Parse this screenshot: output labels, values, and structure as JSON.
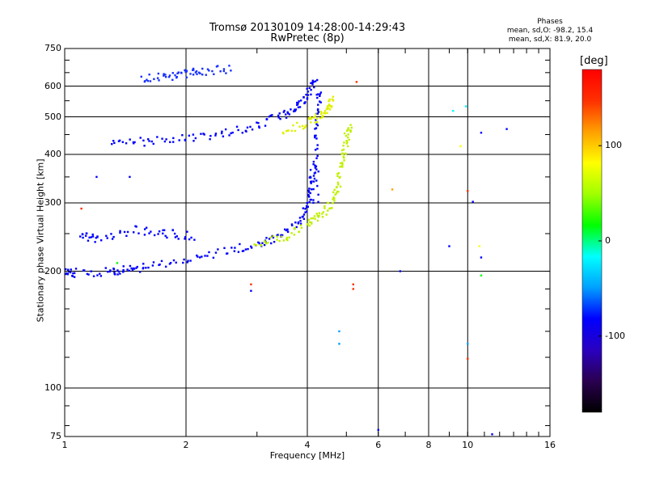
{
  "header": {
    "title": "Tromsø 20130109 14:28:00-14:29:43",
    "subtitle": "RwPretec (8p)",
    "stats_title": "Phases",
    "stats_o": "mean, sd,O: -98.2, 15.4",
    "stats_x": "mean, sd,X: 81.9, 20.0"
  },
  "colorbar": {
    "label": "[deg]",
    "ticks": [
      "100",
      "0",
      "-100"
    ],
    "range": [
      -180,
      180
    ],
    "colors": [
      "#000000",
      "#2a0050",
      "#2a00c0",
      "#0000ff",
      "#00a0ff",
      "#00ffff",
      "#00ff00",
      "#a0ff00",
      "#ffff00",
      "#ffa000",
      "#ff3000",
      "#ff0000"
    ]
  },
  "chart_data": {
    "type": "scatter",
    "title": "Tromsø 20130109 14:28:00-14:29:43",
    "subtitle": "RwPretec (8p)",
    "xlabel": "Frequency [MHz]",
    "ylabel": "Stationary phase Virtual Height [km]",
    "xscale": "log",
    "yscale": "log",
    "xlim": [
      1,
      16
    ],
    "ylim": [
      75,
      750
    ],
    "xticks": [
      "1",
      "2",
      "4",
      "6",
      "8",
      "10",
      "16"
    ],
    "yticks": [
      "75",
      "100",
      "200",
      "300",
      "400",
      "500",
      "600",
      "750"
    ],
    "grid": true,
    "series": [
      {
        "color": "#0000ff",
        "points": [
          [
            1.0,
            200
          ],
          [
            1.05,
            198
          ],
          [
            1.3,
            199
          ],
          [
            1.4,
            202
          ],
          [
            1.6,
            205
          ],
          [
            2.0,
            215
          ],
          [
            2.5,
            225
          ],
          [
            3.0,
            235
          ],
          [
            3.4,
            245
          ],
          [
            3.8,
            265
          ],
          [
            4.0,
            290
          ],
          [
            4.1,
            330
          ],
          [
            4.15,
            380
          ]
        ]
      },
      {
        "color": "#0000ff",
        "points": [
          [
            1.3,
            430
          ],
          [
            1.6,
            432
          ],
          [
            2.0,
            440
          ],
          [
            2.5,
            455
          ],
          [
            3.0,
            475
          ],
          [
            3.5,
            505
          ],
          [
            3.8,
            530
          ],
          [
            4.0,
            570
          ],
          [
            4.2,
            640
          ]
        ]
      },
      {
        "color": "#1830ff",
        "points": [
          [
            1.55,
            628
          ],
          [
            1.8,
            635
          ],
          [
            2.0,
            645
          ],
          [
            2.2,
            655
          ],
          [
            2.6,
            665
          ]
        ]
      },
      {
        "color": "#0000ff",
        "points": [
          [
            4.2,
            300
          ],
          [
            4.2,
            400
          ],
          [
            4.25,
            500
          ],
          [
            4.3,
            600
          ]
        ]
      },
      {
        "color": "#0000ff",
        "points": [
          [
            1.1,
            250
          ],
          [
            1.2,
            240
          ],
          [
            1.5,
            255
          ],
          [
            1.8,
            250
          ],
          [
            2.1,
            245
          ]
        ]
      },
      {
        "color": "#c0f000",
        "points": [
          [
            3.0,
            235
          ],
          [
            3.5,
            245
          ],
          [
            4.0,
            265
          ],
          [
            4.3,
            280
          ],
          [
            4.6,
            300
          ],
          [
            4.8,
            340
          ],
          [
            4.9,
            390
          ],
          [
            5.0,
            440
          ],
          [
            5.1,
            480
          ]
        ]
      },
      {
        "color": "#e0f000",
        "points": [
          [
            3.5,
            460
          ],
          [
            4.0,
            480
          ],
          [
            4.3,
            500
          ],
          [
            4.5,
            530
          ],
          [
            4.6,
            555
          ]
        ]
      }
    ],
    "isolated_points": [
      {
        "x": 12.5,
        "y": 465,
        "color": "#0000ff"
      },
      {
        "x": 10.8,
        "y": 455,
        "color": "#0000ff"
      },
      {
        "x": 9.9,
        "y": 532,
        "color": "#00ffff"
      },
      {
        "x": 9.2,
        "y": 518,
        "color": "#00ffff"
      },
      {
        "x": 9.6,
        "y": 420,
        "color": "#ffff00"
      },
      {
        "x": 10.0,
        "y": 322,
        "color": "#ff3000"
      },
      {
        "x": 10.3,
        "y": 302,
        "color": "#0000ff"
      },
      {
        "x": 10.7,
        "y": 232,
        "color": "#ffff00"
      },
      {
        "x": 10.8,
        "y": 217,
        "color": "#0000ff"
      },
      {
        "x": 10.8,
        "y": 195,
        "color": "#00ff00"
      },
      {
        "x": 10.0,
        "y": 130,
        "color": "#00a0ff"
      },
      {
        "x": 10.0,
        "y": 119,
        "color": "#ff3000"
      },
      {
        "x": 5.2,
        "y": 185,
        "color": "#ff3000"
      },
      {
        "x": 5.2,
        "y": 180,
        "color": "#ff3000"
      },
      {
        "x": 4.8,
        "y": 140,
        "color": "#00a0ff"
      },
      {
        "x": 4.8,
        "y": 130,
        "color": "#00a0ff"
      },
      {
        "x": 6.0,
        "y": 78,
        "color": "#0000ff"
      },
      {
        "x": 11.5,
        "y": 76,
        "color": "#0000ff"
      },
      {
        "x": 6.8,
        "y": 200,
        "color": "#0000ff"
      },
      {
        "x": 6.5,
        "y": 325,
        "color": "#ffa000"
      },
      {
        "x": 5.3,
        "y": 615,
        "color": "#ff3000"
      },
      {
        "x": 2.9,
        "y": 185,
        "color": "#ff3000"
      },
      {
        "x": 2.9,
        "y": 178,
        "color": "#0000ff"
      },
      {
        "x": 1.1,
        "y": 290,
        "color": "#ff3000"
      },
      {
        "x": 1.35,
        "y": 210,
        "color": "#00ff00"
      },
      {
        "x": 1.2,
        "y": 350,
        "color": "#0000ff"
      },
      {
        "x": 1.45,
        "y": 350,
        "color": "#0000ff"
      },
      {
        "x": 9.0,
        "y": 232,
        "color": "#0000ff"
      }
    ]
  }
}
